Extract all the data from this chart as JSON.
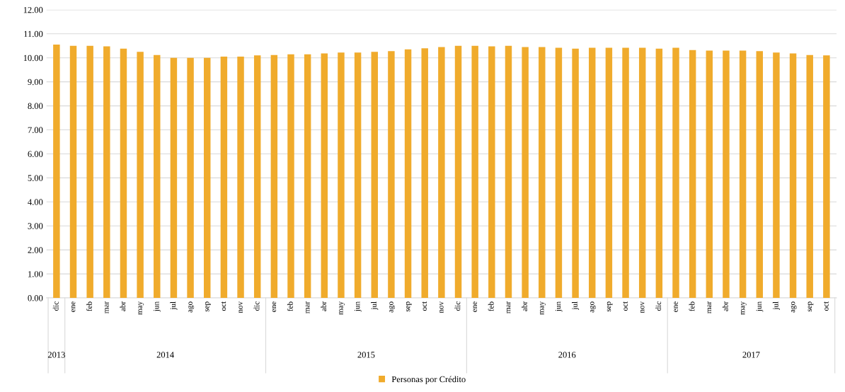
{
  "chart_data": {
    "type": "bar",
    "categories": [
      "dic",
      "ene",
      "feb",
      "mar",
      "abr",
      "may",
      "jun",
      "jul",
      "ago",
      "sep",
      "oct",
      "nov",
      "dic",
      "ene",
      "feb",
      "mar",
      "abr",
      "may",
      "jun",
      "jul",
      "ago",
      "sep",
      "oct",
      "nov",
      "dic",
      "ene",
      "feb",
      "mar",
      "abr",
      "may",
      "jun",
      "jul",
      "ago",
      "sep",
      "oct",
      "nov",
      "dic",
      "ene",
      "feb",
      "mar",
      "abr",
      "may",
      "jun",
      "jul",
      "ago",
      "sep",
      "oct"
    ],
    "series": [
      {
        "name": "Personas por Crédito",
        "color": "#f0ab2c",
        "values": [
          10.55,
          10.5,
          10.5,
          10.48,
          10.38,
          10.25,
          10.12,
          10.0,
          10.0,
          10.0,
          10.05,
          10.05,
          10.1,
          10.12,
          10.15,
          10.15,
          10.18,
          10.22,
          10.22,
          10.25,
          10.28,
          10.35,
          10.4,
          10.45,
          10.5,
          10.5,
          10.48,
          10.5,
          10.45,
          10.45,
          10.42,
          10.38,
          10.42,
          10.42,
          10.42,
          10.42,
          10.38,
          10.42,
          10.32,
          10.3,
          10.3,
          10.3,
          10.28,
          10.22,
          10.18,
          10.12,
          10.1
        ]
      }
    ],
    "annotations": [
      "2013",
      "2014",
      "2015",
      "2016",
      "2017"
    ],
    "ylim": [
      0,
      12
    ],
    "yticks": [
      {
        "value": 0,
        "label": "0.00"
      },
      {
        "value": 1,
        "label": "1.00"
      },
      {
        "value": 2,
        "label": "2.00"
      },
      {
        "value": 3,
        "label": "3.00"
      },
      {
        "value": 4,
        "label": "4.00"
      },
      {
        "value": 5,
        "label": "5.00"
      },
      {
        "value": 6,
        "label": "6.00"
      },
      {
        "value": 7,
        "label": "7.00"
      },
      {
        "value": 8,
        "label": "8.00"
      },
      {
        "value": 9,
        "label": "9.00"
      },
      {
        "value": 10,
        "label": "10.00"
      },
      {
        "value": 11,
        "label": "11.00"
      },
      {
        "value": 12,
        "label": "12.00"
      }
    ],
    "grid": "y",
    "legend": "bottom"
  }
}
